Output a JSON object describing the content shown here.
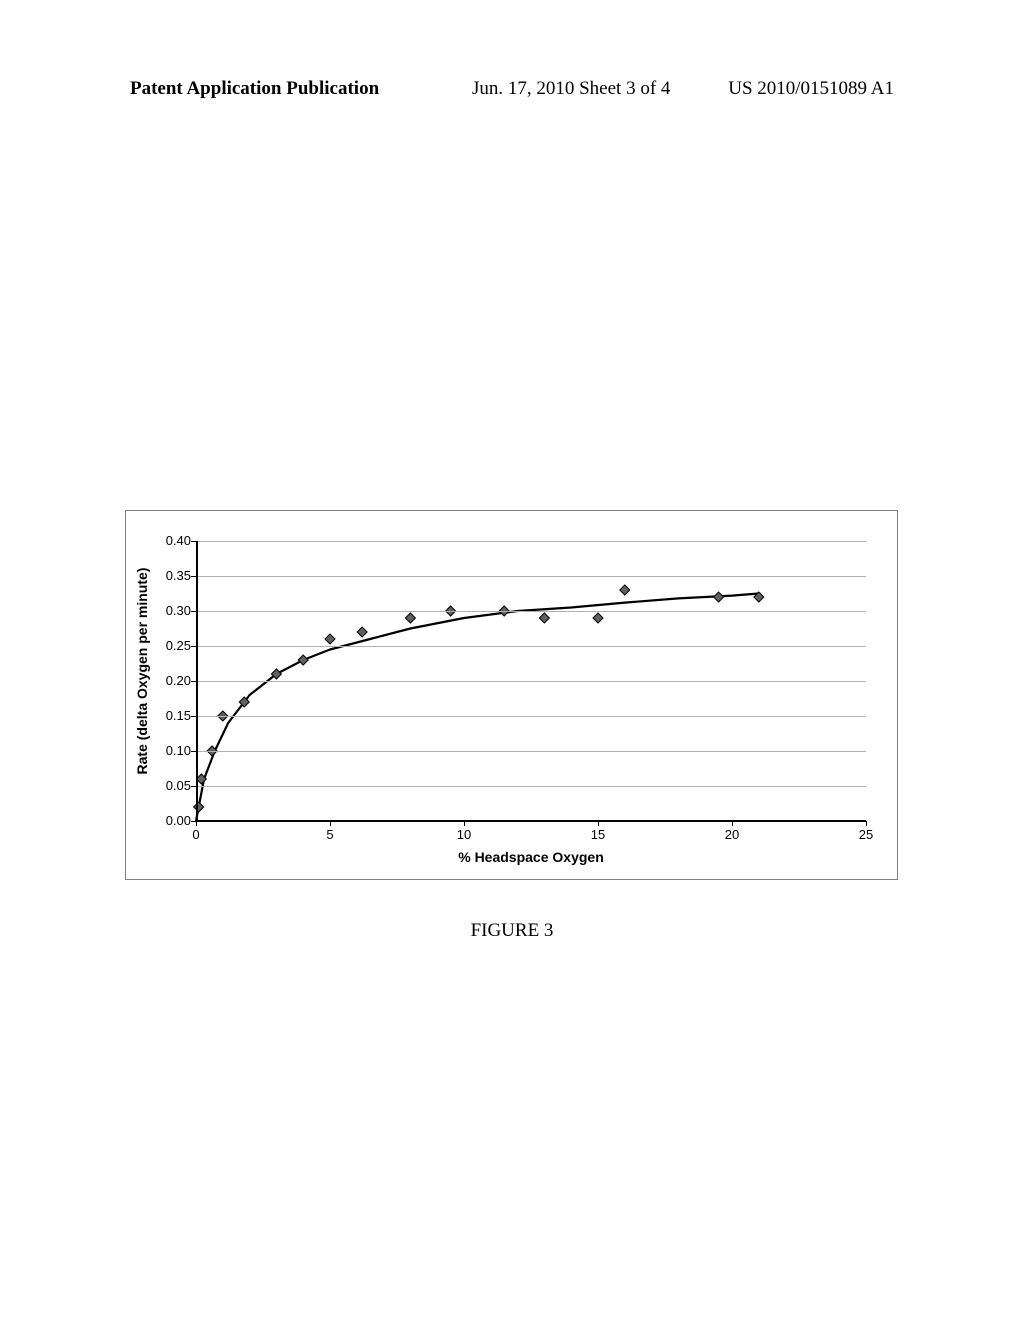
{
  "header": {
    "left": "Patent Application Publication",
    "center": "Jun. 17, 2010  Sheet 3 of 4",
    "right": "US 2010/0151089 A1"
  },
  "figure_caption": "FIGURE 3",
  "chart": {
    "type": "scatter-with-curve",
    "y_label": "Rate (delta Oxygen per minute)",
    "x_label": "% Headspace Oxygen",
    "xlim": [
      0,
      25
    ],
    "ylim": [
      0.0,
      0.4
    ],
    "xticks": [
      0,
      5,
      10,
      15,
      20,
      25
    ],
    "yticks": [
      0.0,
      0.05,
      0.1,
      0.15,
      0.2,
      0.25,
      0.3,
      0.35,
      0.4
    ],
    "ytick_labels": [
      "0.00",
      "0.05",
      "0.10",
      "0.15",
      "0.20",
      "0.25",
      "0.30",
      "0.35",
      "0.40"
    ],
    "xtick_labels": [
      "0",
      "5",
      "10",
      "15",
      "20",
      "25"
    ],
    "grid_ylines": [
      0.05,
      0.1,
      0.15,
      0.2,
      0.25,
      0.3,
      0.35,
      0.4
    ],
    "grid_color": "#b0b0b0",
    "axis_color": "#000000",
    "background": "#ffffff",
    "marker_color": "#606060",
    "marker_stroke": "#000000",
    "marker_size": 10,
    "line_color": "#000000",
    "line_width": 2.2,
    "label_fontsize": 14,
    "tick_fontsize": 13,
    "points": [
      [
        0.1,
        0.02
      ],
      [
        0.2,
        0.06
      ],
      [
        0.6,
        0.1
      ],
      [
        1.0,
        0.15
      ],
      [
        1.8,
        0.17
      ],
      [
        3.0,
        0.21
      ],
      [
        4.0,
        0.23
      ],
      [
        5.0,
        0.26
      ],
      [
        6.2,
        0.27
      ],
      [
        8.0,
        0.29
      ],
      [
        9.5,
        0.3
      ],
      [
        11.5,
        0.3
      ],
      [
        13.0,
        0.29
      ],
      [
        15.0,
        0.29
      ],
      [
        16.0,
        0.33
      ],
      [
        19.5,
        0.32
      ],
      [
        21.0,
        0.32
      ]
    ],
    "curve": [
      [
        0.0,
        0.0
      ],
      [
        0.3,
        0.06
      ],
      [
        0.7,
        0.1
      ],
      [
        1.2,
        0.14
      ],
      [
        2.0,
        0.18
      ],
      [
        3.0,
        0.21
      ],
      [
        4.0,
        0.23
      ],
      [
        5.0,
        0.245
      ],
      [
        6.5,
        0.26
      ],
      [
        8.0,
        0.275
      ],
      [
        10.0,
        0.29
      ],
      [
        12.0,
        0.3
      ],
      [
        14.0,
        0.305
      ],
      [
        16.0,
        0.312
      ],
      [
        18.0,
        0.318
      ],
      [
        20.0,
        0.322
      ],
      [
        21.0,
        0.325
      ]
    ]
  }
}
